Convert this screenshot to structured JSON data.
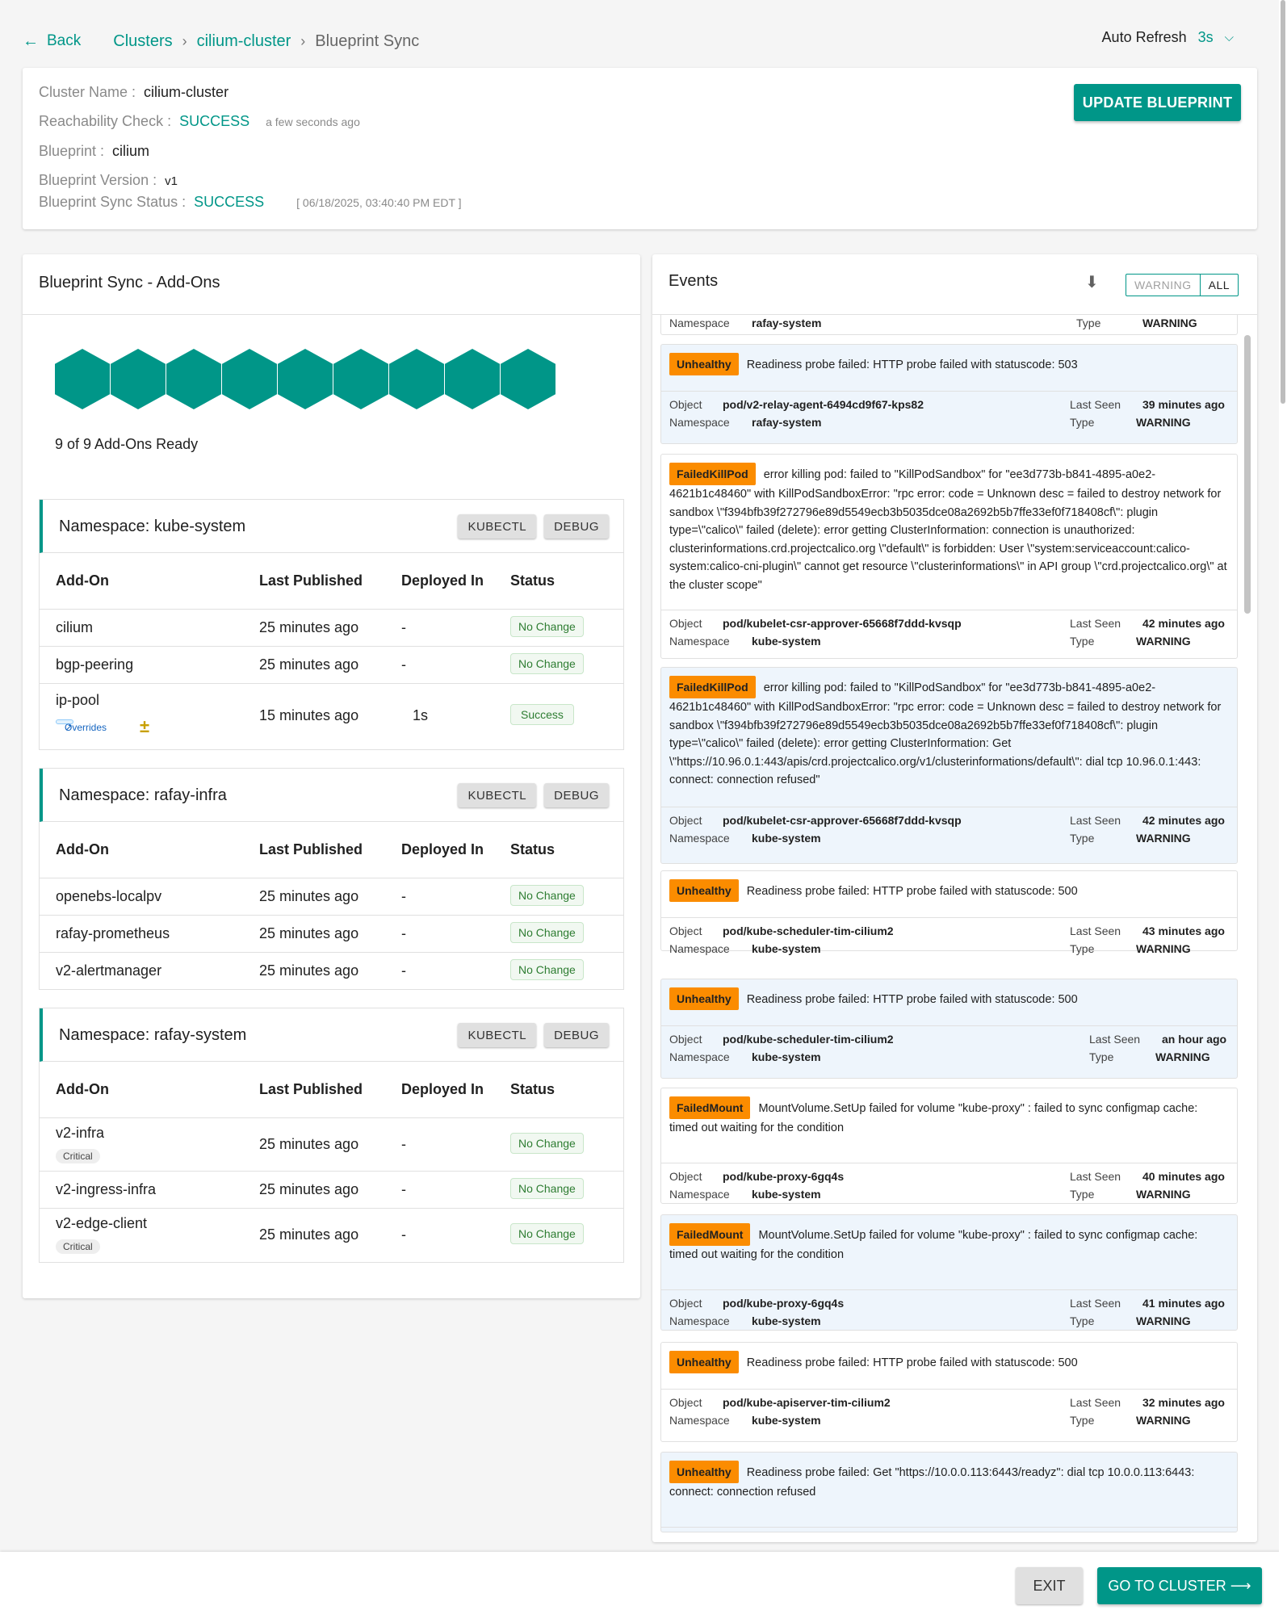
{
  "nav": {
    "back_label": "Back",
    "breadcrumbs": [
      "Clusters",
      "cilium-cluster",
      "Blueprint Sync"
    ],
    "auto_refresh_label": "Auto Refresh",
    "auto_refresh_value": "3s"
  },
  "info": {
    "cluster_name_label": "Cluster Name :",
    "cluster_name": "cilium-cluster",
    "reachability_label": "Reachability Check :",
    "reachability_value": "SUCCESS",
    "reachability_time": "a few seconds ago",
    "blueprint_label": "Blueprint :",
    "blueprint_value": "cilium",
    "version_label": "Blueprint Version :",
    "version_value": "v1",
    "sync_status_label": "Blueprint Sync Status :",
    "sync_status_value": "SUCCESS",
    "sync_time": "[ 06/18/2025, 03:40:40 PM EDT ]",
    "update_button": "UPDATE BLUEPRINT"
  },
  "addons": {
    "title": "Blueprint Sync - Add-Ons",
    "ready_text": "9 of 9 Add-Ons Ready",
    "ready_count": 9,
    "total_count": 9,
    "kubectl_label": "KUBECTL",
    "debug_label": "DEBUG",
    "columns": [
      "Add-On",
      "Last Published",
      "Deployed In",
      "Status"
    ],
    "namespaces": [
      {
        "title": "Namespace: kube-system",
        "rows": [
          {
            "name": "cilium",
            "published": "25 minutes ago",
            "deployed": "-",
            "status": "No Change"
          },
          {
            "name": "bgp-peering",
            "published": "25 minutes ago",
            "deployed": "-",
            "status": "No Change"
          },
          {
            "name": "ip-pool",
            "tag": "Overrides",
            "published": "15 minutes ago",
            "deployed": "1s",
            "status": "Success"
          }
        ]
      },
      {
        "title": "Namespace: rafay-infra",
        "rows": [
          {
            "name": "openebs-localpv",
            "published": "25 minutes ago",
            "deployed": "-",
            "status": "No Change"
          },
          {
            "name": "rafay-prometheus",
            "published": "25 minutes ago",
            "deployed": "-",
            "status": "No Change"
          },
          {
            "name": "v2-alertmanager",
            "published": "25 minutes ago",
            "deployed": "-",
            "status": "No Change"
          }
        ]
      },
      {
        "title": "Namespace: rafay-system",
        "rows": [
          {
            "name": "v2-infra",
            "tag": "Critical",
            "published": "25 minutes ago",
            "deployed": "-",
            "status": "No Change"
          },
          {
            "name": "v2-ingress-infra",
            "published": "25 minutes ago",
            "deployed": "-",
            "status": "No Change"
          },
          {
            "name": "v2-edge-client",
            "tag": "Critical",
            "published": "25 minutes ago",
            "deployed": "-",
            "status": "No Change"
          }
        ]
      }
    ]
  },
  "events": {
    "title": "Events",
    "filter_warning": "WARNING",
    "filter_all": "ALL",
    "labels": {
      "object": "Object",
      "namespace": "Namespace",
      "last_seen": "Last Seen",
      "type": "Type"
    },
    "partial_top": {
      "namespace": "rafay-system",
      "type": "WARNING"
    },
    "items": [
      {
        "reason": "Unhealthy",
        "message": "Readiness probe failed: HTTP probe failed with statuscode: 503",
        "object": "pod/v2-relay-agent-6494cd9f67-kps82",
        "namespace": "rafay-system",
        "last_seen": "39 minutes ago",
        "type": "WARNING"
      },
      {
        "reason": "FailedKillPod",
        "message": "error killing pod: failed to \"KillPodSandbox\" for \"ee3d773b-b841-4895-a0e2-4621b1c48460\" with KillPodSandboxError: \"rpc error: code = Unknown desc = failed to destroy network for sandbox \\\"f394bfb39f272796e89d5549ecb3b5035dce08a2692b5b7ffe33ef0f718408cf\\\": plugin type=\\\"calico\\\" failed (delete): error getting ClusterInformation: connection is unauthorized: clusterinformations.crd.projectcalico.org \\\"default\\\" is forbidden: User \\\"system:serviceaccount:calico-system:calico-cni-plugin\\\" cannot get resource \\\"clusterinformations\\\" in API group \\\"crd.projectcalico.org\\\" at the cluster scope\"",
        "object": "pod/kubelet-csr-approver-65668f7ddd-kvsqp",
        "namespace": "kube-system",
        "last_seen": "42 minutes ago",
        "type": "WARNING"
      },
      {
        "reason": "FailedKillPod",
        "message": "error killing pod: failed to \"KillPodSandbox\" for \"ee3d773b-b841-4895-a0e2-4621b1c48460\" with KillPodSandboxError: \"rpc error: code = Unknown desc = failed to destroy network for sandbox \\\"f394bfb39f272796e89d5549ecb3b5035dce08a2692b5b7ffe33ef0f718408cf\\\": plugin type=\\\"calico\\\" failed (delete): error getting ClusterInformation: Get \\\"https://10.96.0.1:443/apis/crd.projectcalico.org/v1/clusterinformations/default\\\": dial tcp 10.96.0.1:443: connect: connection refused\"",
        "object": "pod/kubelet-csr-approver-65668f7ddd-kvsqp",
        "namespace": "kube-system",
        "last_seen": "42 minutes ago",
        "type": "WARNING"
      },
      {
        "reason": "Unhealthy",
        "message": "Readiness probe failed: HTTP probe failed with statuscode: 500",
        "object": "pod/kube-scheduler-tim-cilium2",
        "namespace": "kube-system",
        "last_seen": "43 minutes ago",
        "type": "WARNING"
      },
      {
        "reason": "Unhealthy",
        "message": "Readiness probe failed: HTTP probe failed with statuscode: 500",
        "object": "pod/kube-scheduler-tim-cilium2",
        "namespace": "kube-system",
        "last_seen": "an hour ago",
        "type": "WARNING"
      },
      {
        "reason": "FailedMount",
        "message": "MountVolume.SetUp failed for volume \"kube-proxy\" : failed to sync configmap cache: timed out waiting for the condition",
        "object": "pod/kube-proxy-6gq4s",
        "namespace": "kube-system",
        "last_seen": "40 minutes ago",
        "type": "WARNING"
      },
      {
        "reason": "FailedMount",
        "message": "MountVolume.SetUp failed for volume \"kube-proxy\" : failed to sync configmap cache: timed out waiting for the condition",
        "object": "pod/kube-proxy-6gq4s",
        "namespace": "kube-system",
        "last_seen": "41 minutes ago",
        "type": "WARNING"
      },
      {
        "reason": "Unhealthy",
        "message": "Readiness probe failed: HTTP probe failed with statuscode: 500",
        "object": "pod/kube-apiserver-tim-cilium2",
        "namespace": "kube-system",
        "last_seen": "32 minutes ago",
        "type": "WARNING"
      },
      {
        "reason": "Unhealthy",
        "message": "Readiness probe failed: Get \"https://10.0.0.113:6443/readyz\": dial tcp 10.0.0.113:6443: connect: connection refused"
      }
    ]
  },
  "footer": {
    "exit_label": "EXIT",
    "go_label": "GO TO CLUSTER"
  },
  "colors": {
    "accent": "#009688",
    "warning_tag": "#fb8c00",
    "success_badge": "#2e7d32"
  }
}
